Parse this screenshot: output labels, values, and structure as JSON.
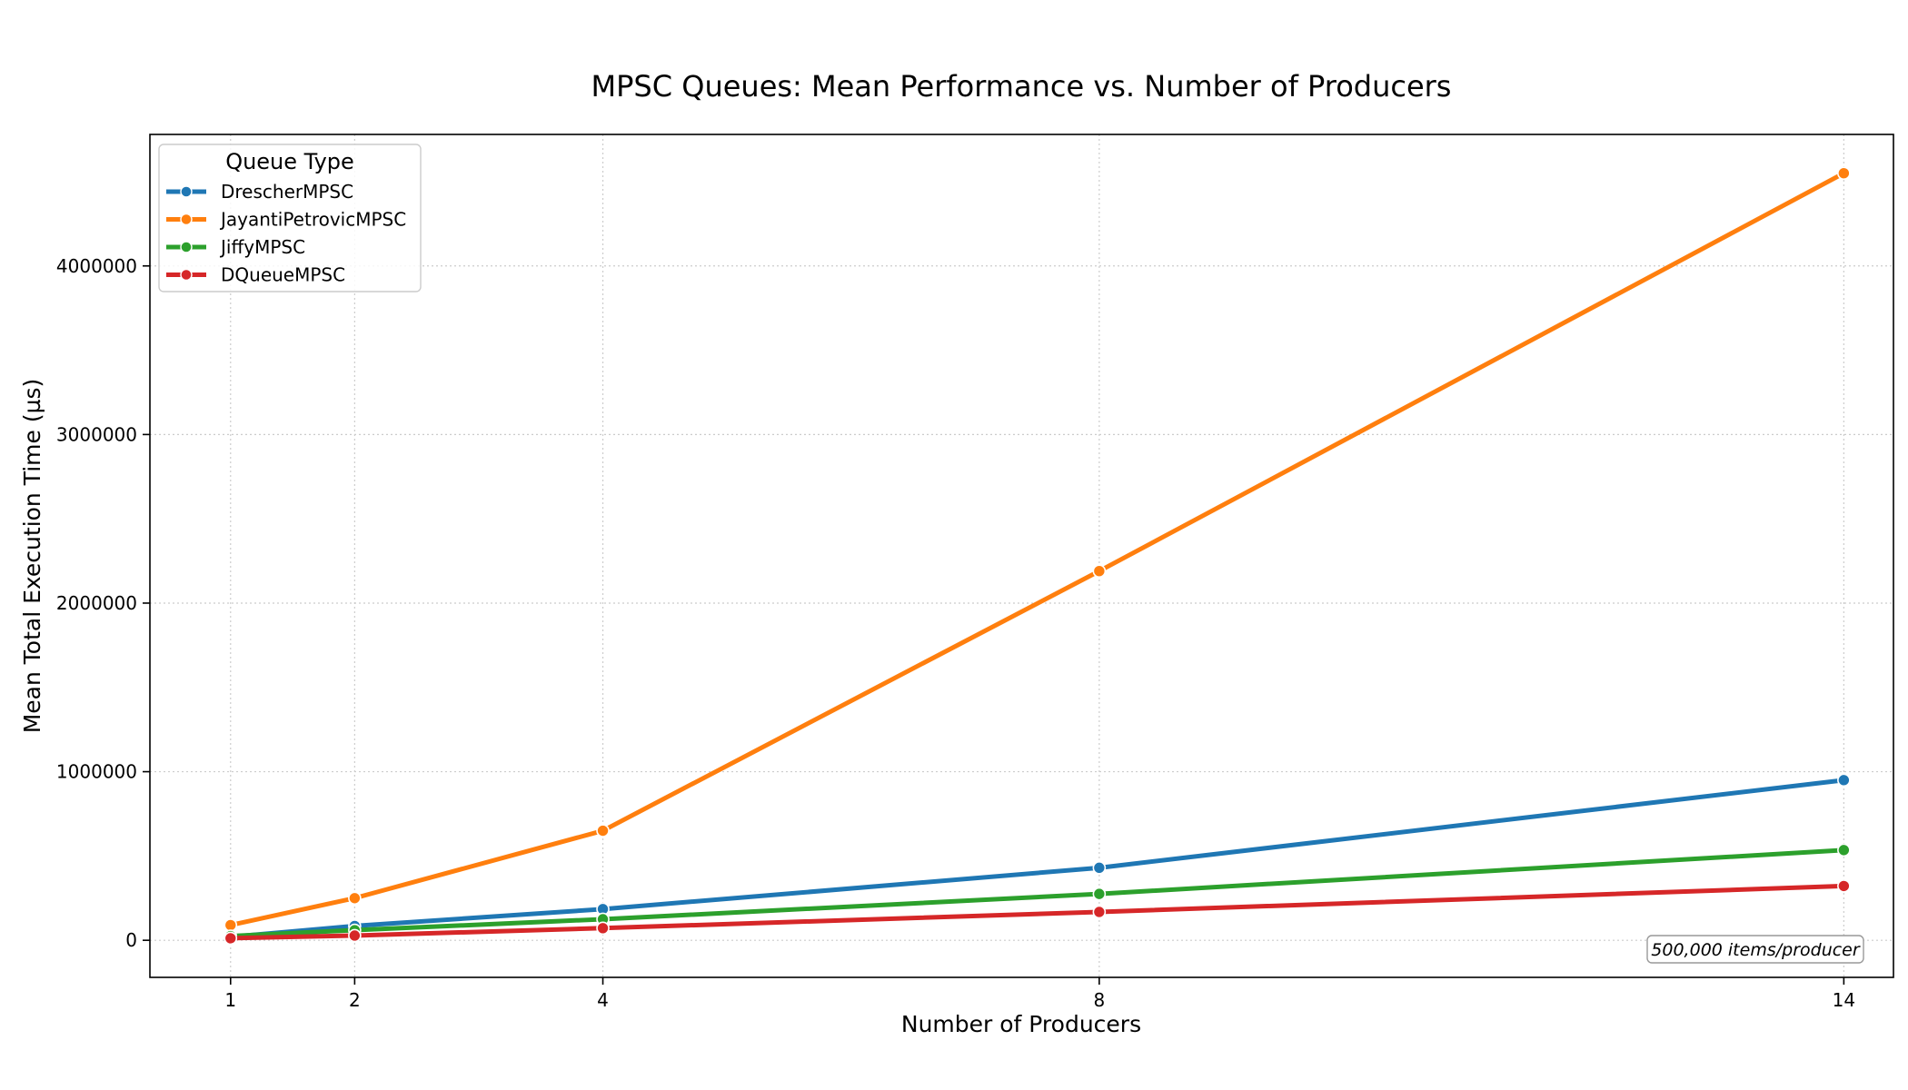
{
  "chart_data": {
    "type": "line",
    "title": "MPSC Queues: Mean Performance vs. Number of Producers",
    "xlabel": "Number of Producers",
    "ylabel": "Mean Total Execution Time (µs)",
    "x": [
      1,
      2,
      4,
      8,
      14
    ],
    "x_ticks": [
      "1",
      "2",
      "4",
      "8",
      "14"
    ],
    "xlim": [
      0.35,
      14.4
    ],
    "y_ticks": [
      0,
      1000000,
      2000000,
      3000000,
      4000000
    ],
    "y_tick_labels": [
      "0",
      "1000000",
      "2000000",
      "3000000",
      "4000000"
    ],
    "ylim": [
      -220000,
      4780000
    ],
    "grid": true,
    "legend": {
      "title": "Queue Type",
      "placement": "top-left"
    },
    "series": [
      {
        "name": "DrescherMPSC",
        "color": "#1f77b4",
        "values": [
          20000,
          85000,
          185000,
          430000,
          950000
        ]
      },
      {
        "name": "JayantiPetrovicMPSC",
        "color": "#ff7f0e",
        "values": [
          90000,
          250000,
          650000,
          2190000,
          4550000
        ]
      },
      {
        "name": "JiffyMPSC",
        "color": "#2ca02c",
        "values": [
          25000,
          60000,
          125000,
          275000,
          535000
        ]
      },
      {
        "name": "DQueueMPSC",
        "color": "#d62728",
        "values": [
          12000,
          28000,
          72000,
          168000,
          322000
        ]
      }
    ],
    "annotation": "500,000 items/producer"
  }
}
